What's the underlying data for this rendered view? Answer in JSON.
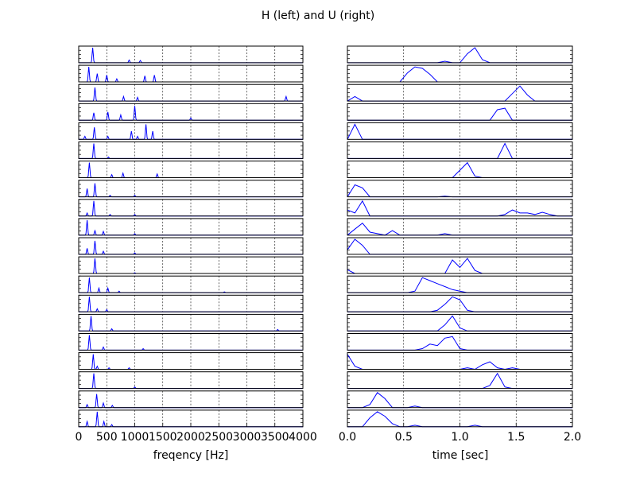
{
  "figure_title": "H (left) and U (right)",
  "colors": {
    "line": "#0000ff",
    "grid": "#000000",
    "axes": "#000000"
  },
  "chart_data": [
    {
      "type": "line",
      "panel": "left",
      "xlabel": "freqency [Hz]",
      "xlim": [
        0,
        4000
      ],
      "x_ticks": [
        0,
        500,
        1000,
        1500,
        2000,
        2500,
        3000,
        3500,
        4000
      ],
      "x_tick_labels": [
        "0",
        "500",
        "1000",
        "1500",
        "2000",
        "2500",
        "3000",
        "3500",
        "4000"
      ],
      "grid": "vertical",
      "series": [
        {
          "peaks": [
            [
              250,
              1.0
            ],
            [
              900,
              0.18
            ],
            [
              1100,
              0.15
            ]
          ]
        },
        {
          "peaks": [
            [
              180,
              1.0
            ],
            [
              330,
              0.55
            ],
            [
              500,
              0.45
            ],
            [
              680,
              0.2
            ],
            [
              1180,
              0.4
            ],
            [
              1350,
              0.45
            ]
          ]
        },
        {
          "peaks": [
            [
              290,
              0.9
            ],
            [
              800,
              0.3
            ],
            [
              1050,
              0.25
            ],
            [
              3700,
              0.3
            ]
          ]
        },
        {
          "peaks": [
            [
              270,
              0.5
            ],
            [
              520,
              0.55
            ],
            [
              750,
              0.35
            ],
            [
              1000,
              0.95
            ],
            [
              2000,
              0.15
            ]
          ]
        },
        {
          "peaks": [
            [
              110,
              0.2
            ],
            [
              280,
              0.8
            ],
            [
              520,
              0.2
            ],
            [
              940,
              0.55
            ],
            [
              1050,
              0.2
            ],
            [
              1200,
              1.0
            ],
            [
              1320,
              0.55
            ]
          ]
        },
        {
          "peaks": [
            [
              270,
              1.0
            ],
            [
              530,
              0.1
            ]
          ]
        },
        {
          "peaks": [
            [
              190,
              1.0
            ],
            [
              590,
              0.2
            ],
            [
              790,
              0.3
            ],
            [
              1400,
              0.25
            ]
          ]
        },
        {
          "peaks": [
            [
              150,
              0.55
            ],
            [
              290,
              0.9
            ],
            [
              560,
              0.1
            ],
            [
              1000,
              0.1
            ]
          ]
        },
        {
          "peaks": [
            [
              150,
              0.2
            ],
            [
              270,
              1.0
            ],
            [
              560,
              0.1
            ],
            [
              1000,
              0.1
            ]
          ]
        },
        {
          "peaks": [
            [
              150,
              1.0
            ],
            [
              290,
              0.3
            ],
            [
              440,
              0.25
            ],
            [
              1000,
              0.1
            ]
          ]
        },
        {
          "peaks": [
            [
              150,
              0.4
            ],
            [
              290,
              0.9
            ],
            [
              440,
              0.2
            ],
            [
              1000,
              0.1
            ]
          ]
        },
        {
          "peaks": [
            [
              290,
              1.0
            ],
            [
              1000,
              0.05
            ]
          ]
        },
        {
          "peaks": [
            [
              190,
              1.0
            ],
            [
              360,
              0.3
            ],
            [
              520,
              0.3
            ],
            [
              720,
              0.1
            ],
            [
              2600,
              0.05
            ]
          ]
        },
        {
          "peaks": [
            [
              190,
              1.0
            ],
            [
              330,
              0.2
            ],
            [
              500,
              0.15
            ]
          ]
        },
        {
          "peaks": [
            [
              220,
              1.0
            ],
            [
              590,
              0.15
            ],
            [
              3550,
              0.1
            ]
          ]
        },
        {
          "peaks": [
            [
              190,
              1.0
            ],
            [
              440,
              0.2
            ],
            [
              1150,
              0.1
            ]
          ]
        },
        {
          "peaks": [
            [
              260,
              1.0
            ],
            [
              330,
              0.2
            ],
            [
              540,
              0.1
            ],
            [
              900,
              0.1
            ]
          ]
        },
        {
          "peaks": [
            [
              270,
              1.0
            ],
            [
              1000,
              0.1
            ]
          ]
        },
        {
          "peaks": [
            [
              150,
              0.2
            ],
            [
              320,
              0.9
            ],
            [
              440,
              0.3
            ],
            [
              600,
              0.15
            ]
          ]
        },
        {
          "peaks": [
            [
              150,
              0.35
            ],
            [
              330,
              1.0
            ],
            [
              450,
              0.35
            ],
            [
              590,
              0.15
            ]
          ]
        }
      ]
    },
    {
      "type": "line",
      "panel": "right",
      "xlabel": "time [sec]",
      "xlim": [
        0.0,
        2.0
      ],
      "x_ticks": [
        0.0,
        0.5,
        1.0,
        1.5,
        2.0
      ],
      "x_tick_labels": [
        "0.0",
        "0.5",
        "1.0",
        "1.5",
        "2.0"
      ],
      "grid": "vertical",
      "x": [
        0.0,
        0.0667,
        0.1333,
        0.2,
        0.2667,
        0.3333,
        0.4,
        0.4667,
        0.5333,
        0.6,
        0.6667,
        0.7333,
        0.8,
        0.8667,
        0.9333,
        1.0,
        1.0667,
        1.1333,
        1.2,
        1.2667,
        1.3333,
        1.4,
        1.4667,
        1.5333,
        1.6,
        1.6667,
        1.7333,
        1.8,
        1.8667,
        1.9333,
        2.0
      ],
      "series": [
        {
          "values": [
            0,
            0,
            0,
            0,
            0,
            0,
            0,
            0,
            0,
            0,
            0,
            0,
            0,
            0.1,
            0,
            0,
            0.6,
            1.0,
            0.2,
            0,
            0,
            0,
            0,
            0,
            0,
            0,
            0,
            0,
            0,
            0,
            0
          ]
        },
        {
          "values": [
            0,
            0,
            0,
            0,
            0,
            0,
            0,
            0,
            0.6,
            1.0,
            0.9,
            0.5,
            0,
            0,
            0,
            0,
            0,
            0,
            0,
            0,
            0,
            0,
            0,
            0,
            0,
            0,
            0,
            0,
            0,
            0,
            0
          ]
        },
        {
          "values": [
            0,
            0.3,
            0,
            0,
            0,
            0,
            0,
            0,
            0,
            0,
            0,
            0,
            0,
            0,
            0,
            0,
            0,
            0,
            0,
            0,
            0,
            0,
            0.5,
            1.0,
            0.4,
            0,
            0,
            0,
            0,
            0,
            0
          ]
        },
        {
          "values": [
            0,
            0,
            0,
            0,
            0,
            0,
            0,
            0,
            0,
            0,
            0,
            0,
            0,
            0,
            0,
            0,
            0,
            0,
            0,
            0,
            0.7,
            0.8,
            0,
            0,
            0,
            0,
            0,
            0,
            0,
            0,
            0
          ]
        },
        {
          "values": [
            0,
            1.0,
            0,
            0,
            0,
            0,
            0,
            0,
            0,
            0,
            0,
            0,
            0,
            0,
            0,
            0,
            0,
            0,
            0,
            0,
            0,
            0,
            0,
            0,
            0,
            0,
            0,
            0,
            0,
            0,
            0
          ]
        },
        {
          "values": [
            0,
            0,
            0,
            0,
            0,
            0,
            0,
            0,
            0,
            0,
            0,
            0,
            0,
            0,
            0,
            0,
            0,
            0,
            0,
            0,
            0,
            1.0,
            0,
            0,
            0,
            0,
            0,
            0,
            0,
            0,
            0
          ]
        },
        {
          "values": [
            0,
            0,
            0,
            0,
            0,
            0,
            0,
            0,
            0,
            0,
            0,
            0,
            0,
            0,
            0,
            0.5,
            1.0,
            0.1,
            0,
            0,
            0,
            0,
            0,
            0,
            0,
            0,
            0,
            0,
            0,
            0,
            0
          ]
        },
        {
          "values": [
            0,
            0.8,
            0.6,
            0,
            0,
            0,
            0,
            0,
            0,
            0,
            0,
            0,
            0,
            0.05,
            0,
            0,
            0,
            0,
            0,
            0,
            0,
            0,
            0,
            0,
            0,
            0,
            0,
            0,
            0,
            0,
            0
          ]
        },
        {
          "values": [
            0.4,
            0.2,
            1.0,
            0,
            0,
            0,
            0,
            0,
            0,
            0,
            0,
            0,
            0,
            0,
            0,
            0,
            0,
            0,
            0,
            0,
            0,
            0.1,
            0.4,
            0.2,
            0.2,
            0.1,
            0.25,
            0.1,
            0,
            0,
            0
          ]
        },
        {
          "values": [
            0,
            0.4,
            0.8,
            0.2,
            0.1,
            0,
            0.3,
            0,
            0,
            0,
            0,
            0,
            0,
            0.1,
            0,
            0,
            0,
            0,
            0,
            0,
            0,
            0,
            0,
            0,
            0,
            0,
            0,
            0,
            0,
            0,
            0
          ]
        },
        {
          "values": [
            0.3,
            1.0,
            0.6,
            0,
            0,
            0,
            0,
            0,
            0,
            0,
            0,
            0,
            0,
            0,
            0,
            0,
            0,
            0,
            0,
            0,
            0,
            0,
            0,
            0,
            0,
            0,
            0,
            0,
            0,
            0,
            0
          ]
        },
        {
          "values": [
            0.25,
            0,
            0,
            0,
            0,
            0,
            0,
            0,
            0,
            0,
            0,
            0,
            0,
            0,
            0.9,
            0.4,
            1.0,
            0.2,
            0,
            0,
            0,
            0,
            0,
            0,
            0,
            0,
            0,
            0,
            0,
            0,
            0
          ]
        },
        {
          "values": [
            0,
            0,
            0,
            0,
            0,
            0,
            0,
            0,
            0,
            0.1,
            1.0,
            0.8,
            0.6,
            0.4,
            0.2,
            0.1,
            0,
            0,
            0,
            0,
            0,
            0,
            0,
            0,
            0,
            0,
            0,
            0,
            0,
            0,
            0
          ]
        },
        {
          "values": [
            0,
            0,
            0,
            0,
            0,
            0,
            0,
            0,
            0,
            0,
            0,
            0,
            0.1,
            0.5,
            1.0,
            0.8,
            0.1,
            0,
            0,
            0,
            0,
            0,
            0,
            0,
            0,
            0,
            0,
            0,
            0,
            0,
            0
          ]
        },
        {
          "values": [
            0,
            0,
            0,
            0,
            0,
            0,
            0,
            0,
            0,
            0,
            0,
            0,
            0,
            0.4,
            1.0,
            0.2,
            0,
            0,
            0,
            0,
            0,
            0,
            0,
            0,
            0,
            0,
            0,
            0,
            0,
            0,
            0
          ]
        },
        {
          "values": [
            0,
            0,
            0,
            0,
            0,
            0,
            0,
            0,
            0,
            0,
            0.1,
            0.4,
            0.3,
            0.8,
            0.9,
            0.1,
            0,
            0,
            0,
            0,
            0,
            0,
            0,
            0,
            0,
            0,
            0,
            0,
            0,
            0,
            0
          ]
        },
        {
          "values": [
            1.0,
            0.2,
            0,
            0,
            0,
            0,
            0,
            0,
            0,
            0,
            0,
            0,
            0,
            0,
            0,
            0,
            0.1,
            0,
            0.3,
            0.5,
            0.1,
            0,
            0.1,
            0,
            0,
            0,
            0,
            0,
            0,
            0,
            0
          ]
        },
        {
          "values": [
            0,
            0,
            0,
            0,
            0,
            0,
            0,
            0,
            0,
            0,
            0,
            0,
            0,
            0,
            0,
            0,
            0,
            0,
            0,
            0.2,
            1.0,
            0.1,
            0,
            0,
            0,
            0,
            0,
            0,
            0,
            0,
            0
          ]
        },
        {
          "values": [
            0,
            0,
            0,
            0.2,
            1.0,
            0.6,
            0,
            0,
            0,
            0.1,
            0,
            0,
            0,
            0,
            0,
            0,
            0,
            0,
            0,
            0,
            0,
            0,
            0,
            0,
            0,
            0,
            0,
            0,
            0,
            0,
            0
          ]
        },
        {
          "values": [
            0,
            0,
            0,
            0.6,
            1.0,
            0.7,
            0.2,
            0,
            0,
            0.1,
            0,
            0,
            0,
            0,
            0,
            0,
            0,
            0.1,
            0,
            0,
            0,
            0,
            0,
            0,
            0,
            0,
            0,
            0,
            0,
            0,
            0
          ]
        }
      ]
    }
  ]
}
